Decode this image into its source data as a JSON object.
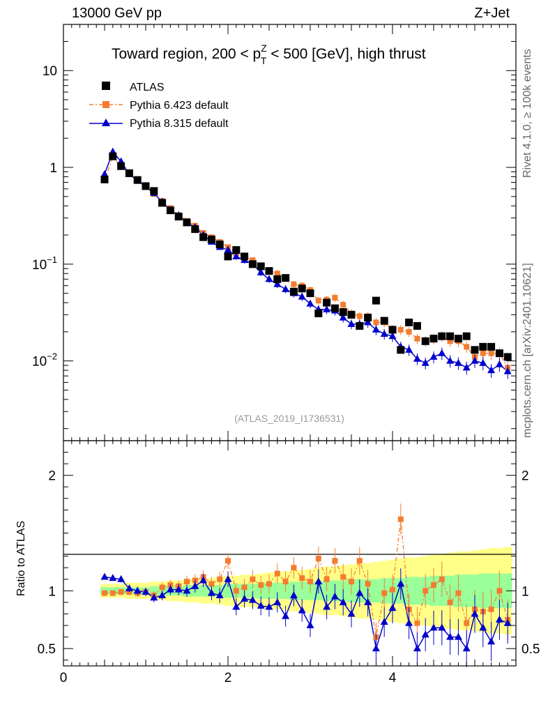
{
  "header": {
    "left": "13000 GeV pp",
    "right": "Z+Jet"
  },
  "side_labels": {
    "rivet": "Rivet 4.1.0, ≥ 100k events",
    "mcplots": "mcplots.cern.ch [arXiv:2401.10621]"
  },
  "chart_data": {
    "type": "scatter",
    "title": "Toward region, 200 < p_T^Z < 500 [GeV], high thrust",
    "title_parts": {
      "pre": "Toward region, 200 < p",
      "sup": "Z",
      "sub": "T",
      "post": " < 500 [GeV], high thrust"
    },
    "watermark": "(ATLAS_2019_I1736531)",
    "xlabel": "",
    "ylabel_upper": "",
    "ylabel_ratio": "Ratio to ATLAS",
    "xlim": [
      0,
      5.5
    ],
    "ylim_upper": [
      0.0015,
      30
    ],
    "ylim_ratio": [
      0.35,
      2.3
    ],
    "yscale_upper": "log",
    "x_ticks": [
      "0",
      "2",
      "4"
    ],
    "upper_y_ticks": [
      {
        "base": "10",
        "exp": "-2",
        "value": 0.01
      },
      {
        "base": "10",
        "exp": "-1",
        "value": 0.1
      },
      {
        "base": "1",
        "exp": "",
        "value": 1
      },
      {
        "base": "10",
        "exp": "",
        "value": 10
      }
    ],
    "ratio_y_ticks": [
      "0.5",
      "1",
      "2"
    ],
    "legend_placement": "top-left",
    "x": [
      0.5,
      0.6,
      0.7,
      0.8,
      0.9,
      1.0,
      1.1,
      1.2,
      1.3,
      1.4,
      1.5,
      1.6,
      1.7,
      1.8,
      1.9,
      2.0,
      2.1,
      2.2,
      2.3,
      2.4,
      2.5,
      2.6,
      2.7,
      2.8,
      2.9,
      3.0,
      3.1,
      3.2,
      3.3,
      3.4,
      3.5,
      3.6,
      3.7,
      3.8,
      3.9,
      4.0,
      4.1,
      4.2,
      4.3,
      4.4,
      4.5,
      4.6,
      4.7,
      4.8,
      4.9,
      5.0,
      5.1,
      5.2,
      5.3,
      5.4
    ],
    "series": [
      {
        "name": "ATLAS",
        "marker": "square",
        "color": "#000000",
        "values": [
          0.75,
          1.3,
          1.03,
          0.87,
          0.74,
          0.64,
          0.57,
          0.43,
          0.36,
          0.31,
          0.27,
          0.23,
          0.19,
          0.18,
          0.16,
          0.12,
          0.14,
          0.12,
          0.1,
          0.095,
          0.085,
          0.07,
          0.072,
          0.052,
          0.056,
          0.05,
          0.031,
          0.04,
          0.035,
          0.032,
          0.03,
          0.023,
          0.028,
          0.042,
          0.026,
          0.021,
          0.013,
          0.025,
          0.023,
          0.016,
          0.017,
          0.018,
          0.018,
          0.017,
          0.018,
          0.013,
          0.014,
          0.014,
          0.012,
          0.011
        ]
      },
      {
        "name": "Pythia 6.423 default",
        "marker": "square",
        "color": "#f47c30",
        "dashed": true,
        "values": [
          0.74,
          1.28,
          1.02,
          0.86,
          0.73,
          0.63,
          0.53,
          0.45,
          0.38,
          0.32,
          0.28,
          0.25,
          0.21,
          0.19,
          0.17,
          0.15,
          0.13,
          0.12,
          0.11,
          0.095,
          0.085,
          0.08,
          0.072,
          0.062,
          0.06,
          0.054,
          0.042,
          0.043,
          0.045,
          0.038,
          0.031,
          0.029,
          0.029,
          0.025,
          0.025,
          0.021,
          0.021,
          0.02,
          0.017,
          0.016,
          0.017,
          0.018,
          0.016,
          0.016,
          0.014,
          0.011,
          0.012,
          0.012,
          0.012,
          0.0085
        ],
        "ratio_band": [
          0.98,
          0.98,
          0.99,
          0.99,
          0.98,
          0.99,
          0.96,
          1.03,
          1.05,
          1.04,
          1.08,
          1.09,
          1.12,
          1.06,
          1.1,
          1.26,
          1.0,
          1.03,
          1.1,
          1.05,
          1.06,
          1.15,
          1.08,
          1.2,
          1.11,
          1.08,
          1.28,
          1.1,
          1.26,
          1.12,
          1.08,
          1.26,
          1.06,
          0.6,
          0.98,
          1.01,
          1.62,
          0.84,
          0.72,
          1.0,
          1.05,
          1.1,
          0.9,
          0.98,
          0.72,
          0.84,
          0.82,
          0.84,
          1.0,
          0.75
        ]
      },
      {
        "name": "Pythia 8.315 default",
        "marker": "triangle",
        "color": "#0000cc",
        "values": [
          0.85,
          1.45,
          1.15,
          0.85,
          0.73,
          0.63,
          0.54,
          0.44,
          0.36,
          0.32,
          0.27,
          0.24,
          0.2,
          0.17,
          0.15,
          0.14,
          0.12,
          0.11,
          0.1,
          0.082,
          0.07,
          0.062,
          0.055,
          0.05,
          0.046,
          0.039,
          0.034,
          0.034,
          0.033,
          0.028,
          0.024,
          0.024,
          0.025,
          0.021,
          0.019,
          0.018,
          0.014,
          0.013,
          0.0105,
          0.0095,
          0.011,
          0.012,
          0.01,
          0.0095,
          0.0085,
          0.01,
          0.0095,
          0.008,
          0.0092,
          0.0078
        ],
        "ratio": [
          1.12,
          1.11,
          1.1,
          1.02,
          1.0,
          0.99,
          0.94,
          0.96,
          1.01,
          1.01,
          1.0,
          1.04,
          1.09,
          0.98,
          0.96,
          1.1,
          0.86,
          0.93,
          0.92,
          0.87,
          0.86,
          0.9,
          0.78,
          0.96,
          0.83,
          0.7,
          1.08,
          0.86,
          0.95,
          0.9,
          0.8,
          0.98,
          0.9,
          0.5,
          0.73,
          0.85,
          1.06,
          0.72,
          0.5,
          0.62,
          0.68,
          0.68,
          0.6,
          0.6,
          0.5,
          0.8,
          0.68,
          0.56,
          0.75,
          0.72
        ]
      }
    ],
    "ratio_band_green_halfwidth": [
      0.03,
      0.03,
      0.03,
      0.03,
      0.03,
      0.03,
      0.04,
      0.04,
      0.04,
      0.04,
      0.05,
      0.05,
      0.05,
      0.05,
      0.05,
      0.06,
      0.06,
      0.06,
      0.06,
      0.07,
      0.07,
      0.07,
      0.07,
      0.08,
      0.08,
      0.08,
      0.08,
      0.09,
      0.09,
      0.09,
      0.1,
      0.1,
      0.1,
      0.1,
      0.11,
      0.11,
      0.11,
      0.12,
      0.12,
      0.12,
      0.13,
      0.13,
      0.13,
      0.14,
      0.14,
      0.14,
      0.15,
      0.15,
      0.15,
      0.15
    ],
    "ratio_band_yellow_halfwidth": [
      0.06,
      0.06,
      0.06,
      0.07,
      0.07,
      0.07,
      0.08,
      0.08,
      0.09,
      0.09,
      0.1,
      0.1,
      0.11,
      0.11,
      0.12,
      0.13,
      0.13,
      0.14,
      0.14,
      0.15,
      0.16,
      0.16,
      0.17,
      0.18,
      0.18,
      0.19,
      0.2,
      0.21,
      0.21,
      0.22,
      0.23,
      0.24,
      0.24,
      0.25,
      0.26,
      0.27,
      0.28,
      0.29,
      0.29,
      0.3,
      0.31,
      0.32,
      0.33,
      0.34,
      0.34,
      0.35,
      0.36,
      0.37,
      0.37,
      0.38
    ]
  }
}
